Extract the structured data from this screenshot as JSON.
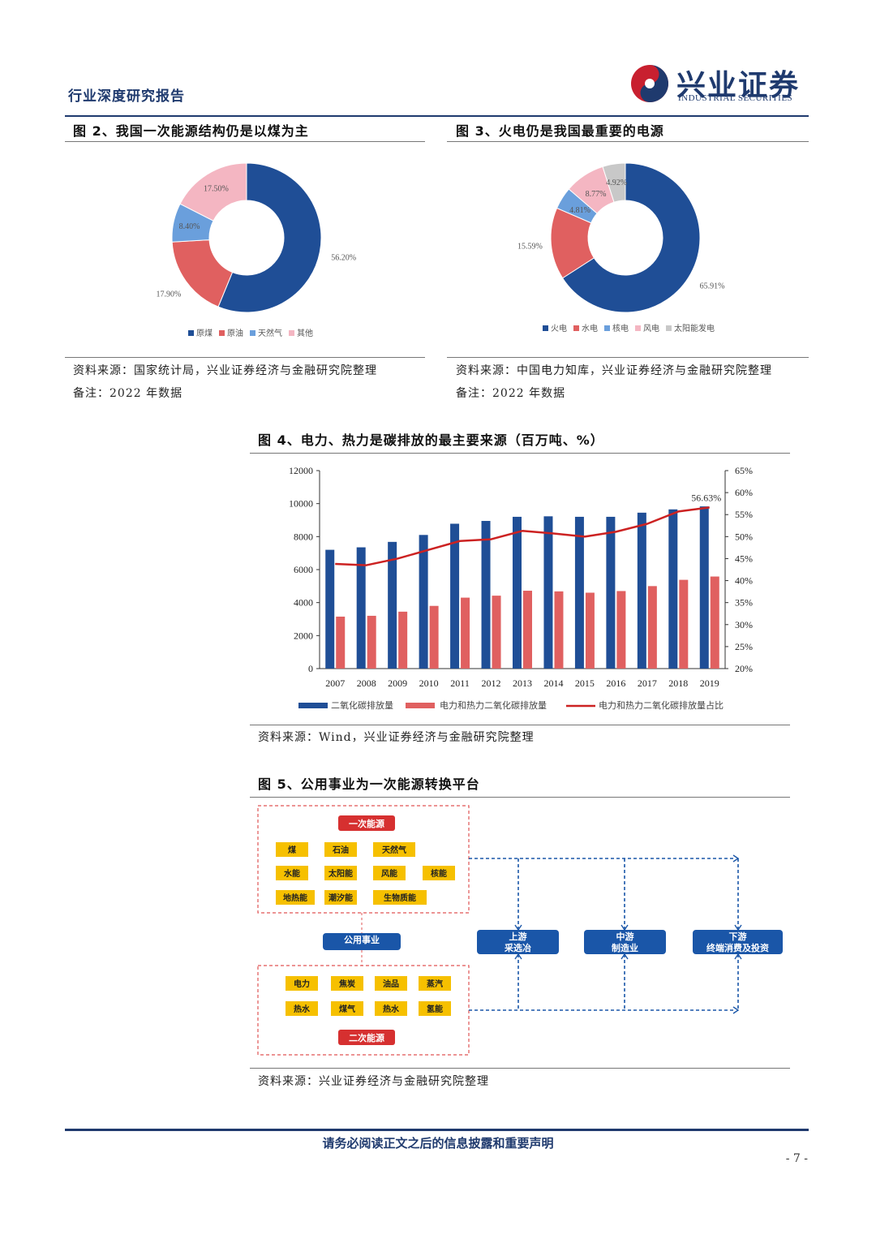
{
  "header": {
    "title": "行业深度研究报告",
    "logo_cn": "兴业证券",
    "logo_en": "INDUSTRIAL SECURITIES"
  },
  "fig2": {
    "title": "图 2、我国一次能源结构仍是以煤为主",
    "source": "资料来源：国家统计局，兴业证券经济与金融研究院整理",
    "note": "备注：2022 年数据"
  },
  "fig3": {
    "title": "图 3、火电仍是我国最重要的电源",
    "source": "资料来源：中国电力知库，兴业证券经济与金融研究院整理",
    "note": "备注：2022 年数据"
  },
  "fig4": {
    "title": "图 4、电力、热力是碳排放的最主要来源（百万吨、%）",
    "source": "资料来源：Wind，兴业证券经济与金融研究院整理"
  },
  "fig5": {
    "title": "图 5、公用事业为一次能源转换平台",
    "source": "资料来源：兴业证券经济与金融研究院整理",
    "primary_label": "一次能源",
    "primary_items": [
      "煤",
      "石油",
      "天然气",
      "水能",
      "太阳能",
      "风能",
      "核能",
      "地热能",
      "潮汐能",
      "生物质能"
    ],
    "utility_label": "公用事业",
    "secondary_items": [
      "电力",
      "焦炭",
      "油品",
      "蒸汽",
      "热水",
      "煤气",
      "热水",
      "氢能"
    ],
    "secondary_label": "二次能源",
    "upstream": [
      "上游",
      "采选冶"
    ],
    "midstream": [
      "中游",
      "制造业"
    ],
    "downstream": [
      "下游",
      "终端消费及投资"
    ]
  },
  "footer": {
    "disclaimer": "请务必阅读正文之后的信息披露和重要声明",
    "page": "- 7 -"
  },
  "colors": {
    "navy": "#1f4e96",
    "red": "#e06060",
    "blue_light": "#6a9fdc",
    "pink": "#f4b6c2",
    "gray": "#c8c8c8",
    "line_red": "#cc2222",
    "yellow": "#f6c000",
    "brand": "#1f3a6e"
  },
  "chart_data": [
    {
      "type": "pie",
      "labels": [
        "原煤",
        "原油",
        "天然气",
        "其他"
      ],
      "values": [
        56.2,
        17.9,
        8.4,
        17.5
      ],
      "value_labels": [
        "56.20%",
        "17.90%",
        "8.40%",
        "17.50%"
      ],
      "colors": [
        "#1f4e96",
        "#e06060",
        "#6a9fdc",
        "#f4b6c2"
      ],
      "legend": "bottom"
    },
    {
      "type": "pie",
      "labels": [
        "火电",
        "水电",
        "核电",
        "风电",
        "太阳能发电"
      ],
      "values": [
        65.91,
        15.59,
        4.81,
        8.77,
        4.92
      ],
      "value_labels": [
        "65.91%",
        "15.59%",
        "4.81%",
        "8.77%",
        "4.92%"
      ],
      "colors": [
        "#1f4e96",
        "#e06060",
        "#6a9fdc",
        "#f4b6c2",
        "#c8c8c8"
      ],
      "legend": "bottom"
    },
    {
      "type": "bar",
      "categories": [
        "2007",
        "2008",
        "2009",
        "2010",
        "2011",
        "2012",
        "2013",
        "2014",
        "2015",
        "2016",
        "2017",
        "2018",
        "2019"
      ],
      "series": [
        {
          "name": "二氧化碳排放量",
          "axis": "left",
          "color": "#1f4e96",
          "values": [
            7200,
            7350,
            7680,
            8100,
            8780,
            8950,
            9200,
            9230,
            9200,
            9200,
            9450,
            9650,
            9830
          ]
        },
        {
          "name": "电力和热力二氧化碳排放量",
          "axis": "left",
          "color": "#e06060",
          "values": [
            3150,
            3200,
            3450,
            3800,
            4300,
            4420,
            4720,
            4680,
            4600,
            4700,
            5000,
            5380,
            5580
          ]
        },
        {
          "name": "电力和热力二氧化碳排放量占比",
          "axis": "right",
          "type": "line",
          "color": "#cc2222",
          "values": [
            43.8,
            43.5,
            45.0,
            47.0,
            49.0,
            49.4,
            51.3,
            50.7,
            50.0,
            51.1,
            52.9,
            55.7,
            56.63
          ]
        }
      ],
      "ylim": [
        0,
        12000
      ],
      "yticks": [
        "0",
        "2000",
        "4000",
        "6000",
        "8000",
        "10000",
        "12000"
      ],
      "y2lim": [
        20,
        65
      ],
      "y2ticks": [
        "20%",
        "25%",
        "30%",
        "35%",
        "40%",
        "45%",
        "50%",
        "55%",
        "60%",
        "65%"
      ],
      "annotation": "56.63%",
      "legend": "bottom"
    }
  ]
}
